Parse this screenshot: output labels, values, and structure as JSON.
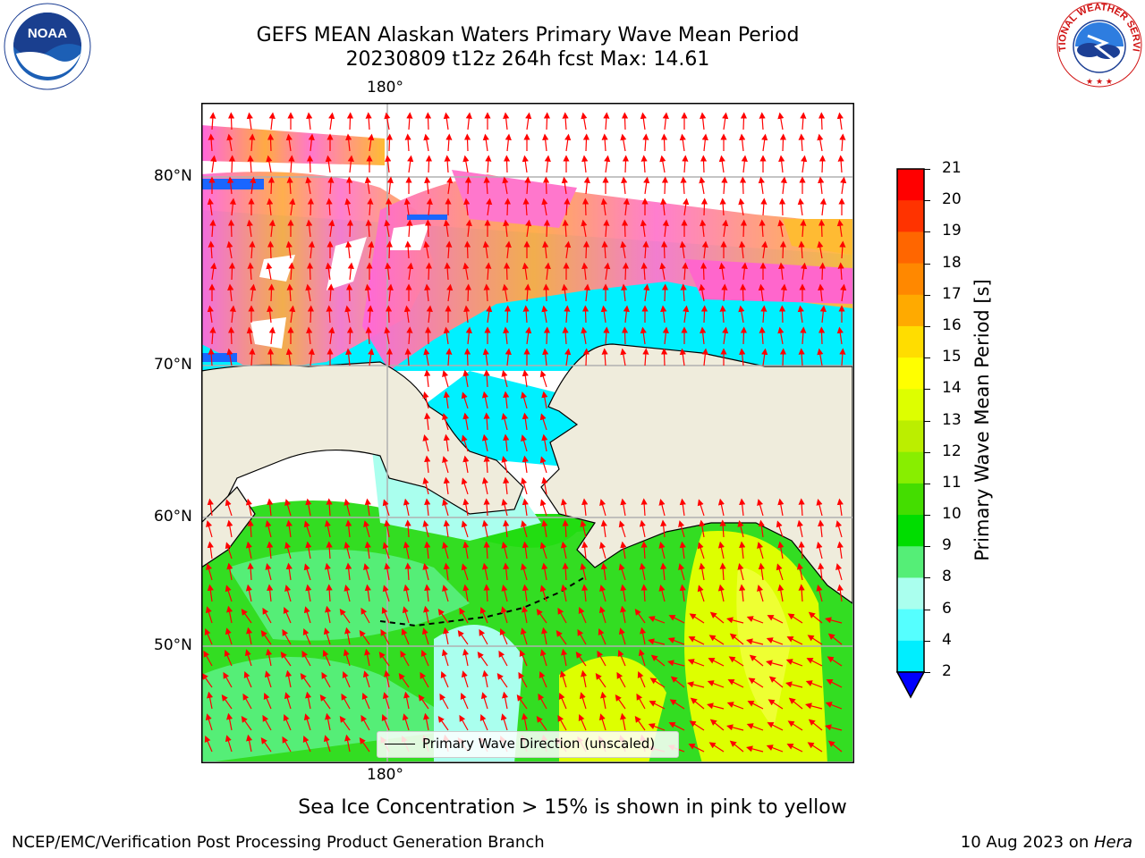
{
  "title": {
    "line1": "GEFS MEAN Alaskan Waters Primary Wave Mean Period",
    "line2": "20230809 t12z 264h fcst   Max: 14.61"
  },
  "map": {
    "lon_label_top": "180°",
    "lon_label_bottom": "180°",
    "lat_labels": [
      "80°N",
      "70°N",
      "60°N",
      "50°N"
    ],
    "legend_label": "Primary Wave Direction (unscaled)",
    "arrow_color": "#ff0000",
    "land_color": "#efecdc"
  },
  "colorbar": {
    "label": "Primary Wave Mean Period [s]",
    "ticks": [
      "21",
      "20",
      "19",
      "18",
      "17",
      "16",
      "15",
      "14",
      "13",
      "12",
      "11",
      "10",
      "9",
      "8",
      "6",
      "4",
      "2"
    ],
    "colors": [
      "#ff0000",
      "#ff3300",
      "#ff6600",
      "#ff8800",
      "#ffaa00",
      "#ffdd00",
      "#ffff00",
      "#ddff00",
      "#bbee00",
      "#88ee00",
      "#44dd00",
      "#00dd00",
      "#55ee77",
      "#aaffee",
      "#55ffff",
      "#00eeff",
      "#0088ff",
      "#0000ff"
    ]
  },
  "caption": "Sea Ice Concentration > 15% is shown in pink to yellow",
  "footer": {
    "left": "NCEP/EMC/Verification Post Processing Product Generation Branch",
    "right_date": "10 Aug 2023 on ",
    "right_host": "Hera"
  },
  "logos": {
    "noaa": "NOAA",
    "nws_ring": "NATIONAL WEATHER SERVICE"
  }
}
